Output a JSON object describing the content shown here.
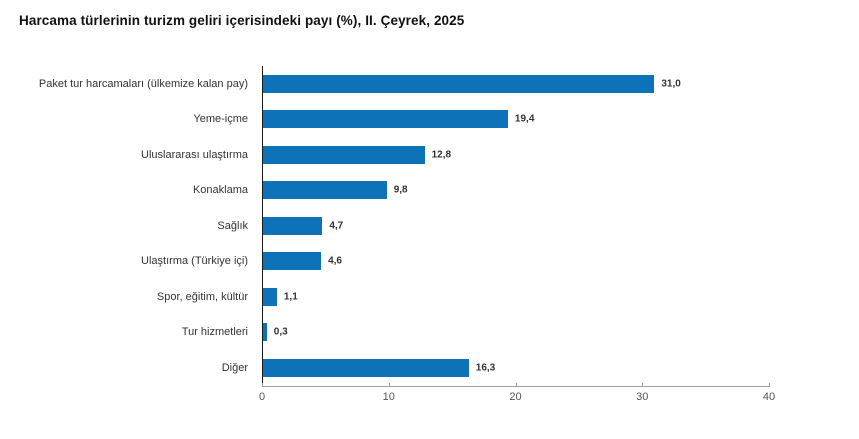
{
  "page": {
    "title": "Harcama türlerinin turizm geliri içerisindeki payı (%), II. Çeyrek, 2025"
  },
  "chart_data": {
    "type": "bar",
    "orientation": "horizontal",
    "title": "Harcama türlerinin turizm geliri içerisindeki payı (%), II. Çeyrek, 2025",
    "categories": [
      "Paket tur harcamaları (ülkemize kalan pay)",
      "Yeme-içme",
      "Uluslararası ulaştırma",
      "Konaklama",
      "Sağlık",
      "Ulaştırma (Türkiye içi)",
      "Spor, eğitim, kültür",
      "Tur hizmetleri",
      "Diğer"
    ],
    "values": [
      31.0,
      19.4,
      12.8,
      9.8,
      4.7,
      4.6,
      1.1,
      0.3,
      16.3
    ],
    "value_labels": [
      "31,0",
      "19,4",
      "12,8",
      "9,8",
      "4,7",
      "4,6",
      "1,1",
      "0,3",
      "16,3"
    ],
    "xlabel": "",
    "ylabel": "",
    "xlim": [
      0,
      40
    ],
    "x_tick_labels": [
      "0",
      "10",
      "20",
      "30",
      "40"
    ],
    "x_tick_values": [
      0,
      10,
      20,
      30,
      40
    ],
    "grid": false,
    "legend": "none",
    "colors": {
      "bar": "#0e72b8",
      "y_axis_line": "#1a1a1a",
      "x_axis_line": "#9d9d9d",
      "title_text": "#111111",
      "category_text": "#333333",
      "value_text": "#333333",
      "tick_text": "#555555",
      "background": "#ffffff"
    }
  }
}
